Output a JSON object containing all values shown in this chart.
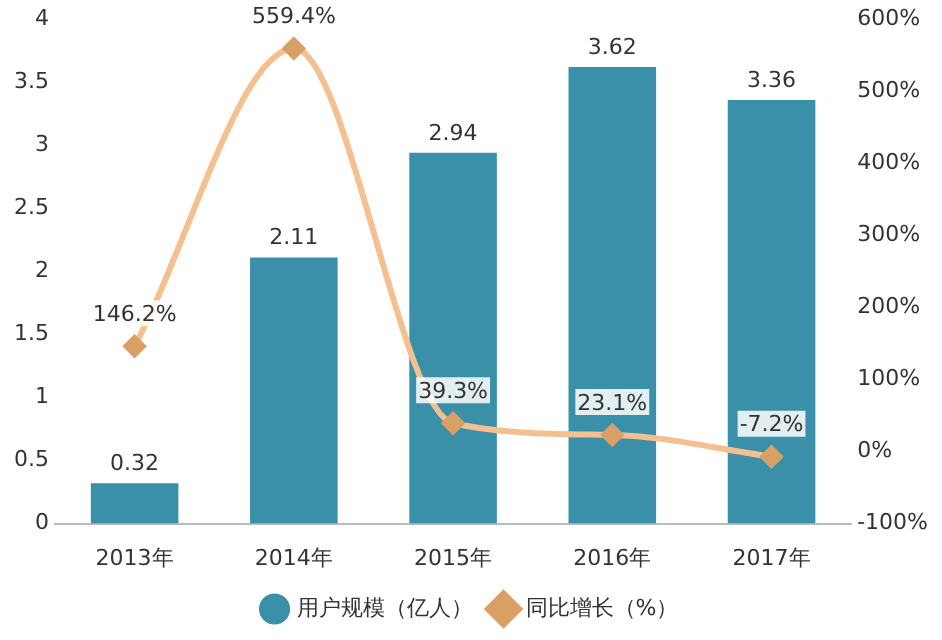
{
  "chart_data": {
    "type": "bar",
    "categories": [
      "2013年",
      "2014年",
      "2015年",
      "2016年",
      "2017年"
    ],
    "series": [
      {
        "name": "用户规模（亿人）",
        "color": "#3a90a8",
        "values": [
          0.32,
          2.11,
          2.94,
          3.62,
          3.36
        ],
        "value_labels": [
          "0.32",
          "2.11",
          "2.94",
          "3.62",
          "3.36"
        ]
      },
      {
        "name": "同比增长（%）",
        "type": "line",
        "axis": "y2",
        "color": "#f5c08f",
        "marker": "diamond",
        "values": [
          146.2,
          559.4,
          39.3,
          23.1,
          -7.2
        ],
        "value_labels": [
          "146.2%",
          "559.4%",
          "39.3%",
          "23.1%",
          "-7.2%"
        ]
      }
    ],
    "ylim": [
      0,
      4
    ],
    "yticks": [
      0,
      0.5,
      1,
      1.5,
      2,
      2.5,
      3,
      3.5,
      4
    ],
    "y2lim": [
      -100,
      600
    ],
    "y2ticks": [
      {
        "value": -100,
        "label": "-100%"
      },
      {
        "value": 0,
        "label": "0%"
      },
      {
        "value": 100,
        "label": "100%"
      },
      {
        "value": 200,
        "label": "200%"
      },
      {
        "value": 300,
        "label": "300%"
      },
      {
        "value": 400,
        "label": "400%"
      },
      {
        "value": 500,
        "label": "500%"
      },
      {
        "value": 600,
        "label": "600%"
      }
    ],
    "grid": false,
    "legend": "bottom"
  }
}
